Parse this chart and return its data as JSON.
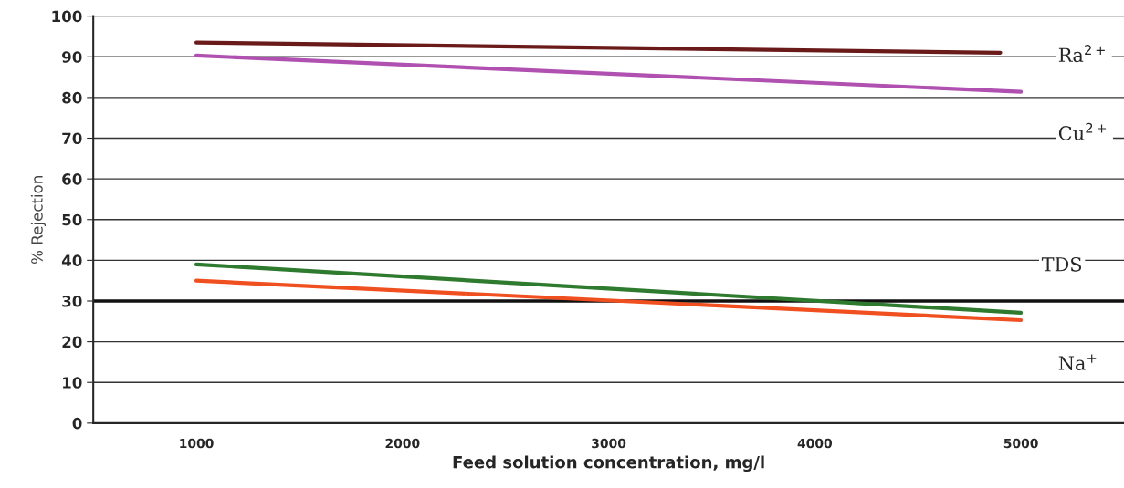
{
  "chart_data": {
    "type": "line",
    "xlabel": "Feed solution concentration, mg/l",
    "ylabel": "% Rejection",
    "xlim": [
      500,
      5500
    ],
    "xticks": [
      1000,
      2000,
      3000,
      4000,
      5000
    ],
    "ylim": [
      0,
      100
    ],
    "yticks": [
      0,
      10,
      20,
      30,
      40,
      50,
      60,
      70,
      80,
      90,
      100
    ],
    "grid": "y",
    "marker": "none",
    "line_style": "solid",
    "series": [
      {
        "color": "#6b1a1a",
        "x": [
          1000,
          4900
        ],
        "values": [
          93.5,
          91.0
        ]
      },
      {
        "color": "#b050b0",
        "x": [
          1000,
          5000
        ],
        "values": [
          90.3,
          81.4
        ]
      },
      {
        "color": "#2e7a2e",
        "x": [
          1000,
          5000
        ],
        "values": [
          39,
          27.1
        ]
      },
      {
        "color": "#f05020",
        "x": [
          1000,
          5000
        ],
        "values": [
          35,
          25.3
        ]
      }
    ],
    "ref_lines": [
      {
        "axis": "y",
        "value": 30,
        "color": "#111111",
        "line_style": "solid"
      }
    ],
    "annotations": [
      "Ra$^{2+}$",
      "Cu$^{2+}$",
      "TDS",
      "Na$^{+}$"
    ]
  }
}
